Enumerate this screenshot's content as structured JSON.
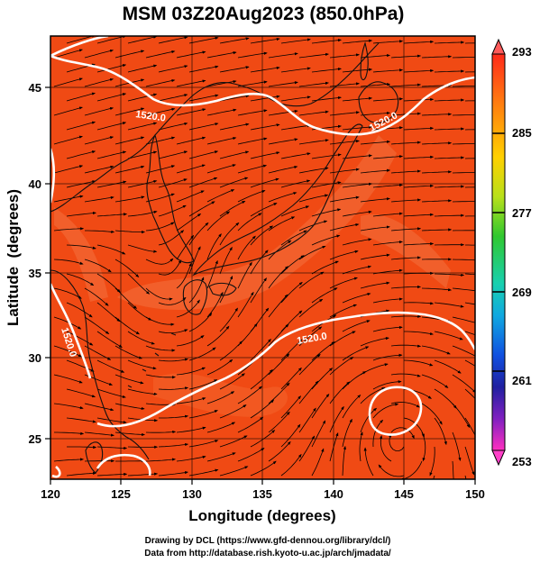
{
  "title": "MSM 03Z20Aug2023 (850.0hPa)",
  "x_axis": {
    "label": "Longitude (degrees)",
    "range": [
      120,
      150
    ],
    "ticks": [
      "120",
      "125",
      "130",
      "135",
      "140",
      "145",
      "150"
    ]
  },
  "y_axis": {
    "label": "Latitude  (degrees)",
    "range": [
      22.5,
      47.8
    ],
    "ticks": [
      "25",
      "30",
      "35",
      "40",
      "45"
    ]
  },
  "colorbar": {
    "ticks": [
      "293",
      "285",
      "277",
      "269",
      "261",
      "253"
    ],
    "range": [
      253,
      293
    ]
  },
  "contour_labels": [
    "1520.0",
    "1520.0",
    "1520.0",
    "1520.0"
  ],
  "credits": [
    "Drawing by DCL (https://www.gfd-dennou.org/library/dcl/)",
    "Data from http://database.rish.kyoto-u.ac.jp/arch/jmadata/"
  ],
  "colors": {
    "field_base": "#f04a14",
    "field_light": "#f06a38",
    "contour": "#ffffff",
    "streamline": "#000000",
    "coastline": "#111111"
  }
}
